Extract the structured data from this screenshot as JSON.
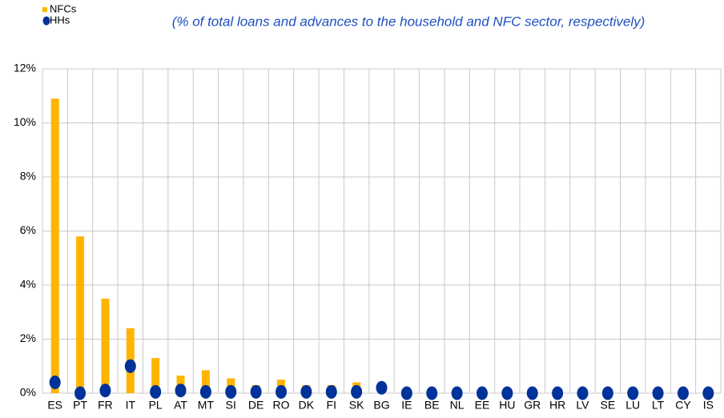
{
  "chart_data": {
    "type": "bar",
    "subtitle": "(% of total loans and advances to the household and NFC sector, respectively)",
    "categories": [
      "ES",
      "PT",
      "FR",
      "IT",
      "PL",
      "AT",
      "MT",
      "SI",
      "DE",
      "RO",
      "DK",
      "FI",
      "SK",
      "BG",
      "IE",
      "BE",
      "NL",
      "EE",
      "HU",
      "GR",
      "HR",
      "LV",
      "SE",
      "LU",
      "LT",
      "CY",
      "IS"
    ],
    "series": [
      {
        "name": "NFCs",
        "color": "#ffb400",
        "marker": "bar",
        "values": [
          10.9,
          5.8,
          3.5,
          2.4,
          1.3,
          0.65,
          0.85,
          0.55,
          0.3,
          0.5,
          0.3,
          0.3,
          0.4,
          0,
          0,
          0,
          0,
          0,
          0,
          0,
          0,
          0,
          0,
          0,
          0,
          0,
          0
        ]
      },
      {
        "name": "HHs",
        "color": "#003299",
        "marker": "dot",
        "values": [
          0.4,
          0,
          0.1,
          1.0,
          0.05,
          0.1,
          0.05,
          0.05,
          0.05,
          0.05,
          0.05,
          0.05,
          0.05,
          0.2,
          0,
          0,
          0,
          0,
          0,
          0,
          0,
          0,
          0,
          0,
          0,
          0,
          0
        ]
      }
    ],
    "ylim": [
      0,
      12
    ],
    "yticks": [
      {
        "value": 0,
        "label": "0%"
      },
      {
        "value": 2,
        "label": "2%"
      },
      {
        "value": 4,
        "label": "4%"
      },
      {
        "value": 6,
        "label": "6%"
      },
      {
        "value": 8,
        "label": "8%"
      },
      {
        "value": 10,
        "label": "10%"
      },
      {
        "value": 12,
        "label": "12%"
      }
    ],
    "grid": true
  }
}
